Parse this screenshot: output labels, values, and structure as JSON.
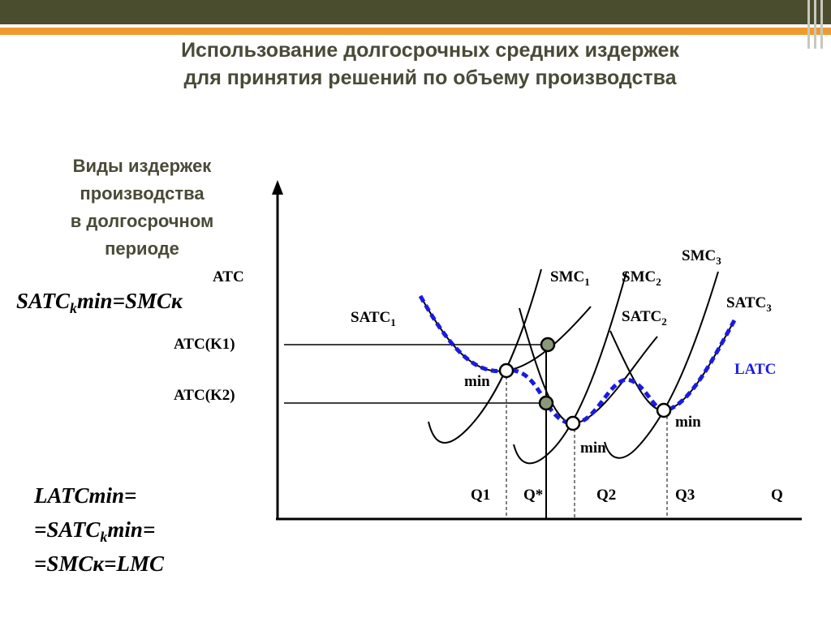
{
  "header": {
    "title": [
      "Использование долгосрочных средних издержек",
      "для принятия решений по объему производства"
    ]
  },
  "side_text": [
    "Виды издержек",
    "производства",
    "в долгосрочном",
    "периоде"
  ],
  "formula_top": {
    "main": "SATC",
    "sub": "k",
    "rest": "min=SMCк"
  },
  "formula_bottom": {
    "line1": "LATCmin=",
    "line2": {
      "main": "=SATC",
      "sub": "k",
      "rest": "min="
    },
    "line3": "=SMCк=LMC"
  },
  "graph": {
    "y_axis": "ATC",
    "x_axis": "Q",
    "levels": [
      "ATC(K1)",
      "ATC(K2)"
    ],
    "curves": {
      "satc1": {
        "main": "SATC",
        "sub": "1"
      },
      "smc1": {
        "main": "SMC",
        "sub": "1"
      },
      "smc2": {
        "main": "SMC",
        "sub": "2"
      },
      "smc3": {
        "main": "SMC",
        "sub": "3"
      },
      "satc2": {
        "main": "SATC",
        "sub": "2"
      },
      "satc3": {
        "main": "SATC",
        "sub": "3"
      },
      "latc": "LATC"
    },
    "min_labels": [
      "min",
      "min",
      "min"
    ],
    "quantities": [
      "Q1",
      "Q*",
      "Q2",
      "Q3"
    ]
  }
}
